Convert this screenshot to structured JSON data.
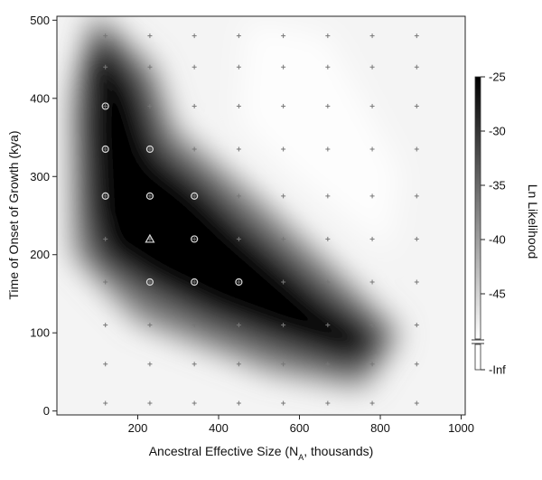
{
  "chart_data": {
    "type": "heatmap",
    "xlabel": "Ancestral Effective Size (N",
    "xlabel_sub": "A",
    "xlabel_tail": ", thousands)",
    "ylabel": "Time of Onset of Growth (kya)",
    "colorbar_label": "Ln Likelihood",
    "xlim": [
      0,
      1010
    ],
    "ylim": [
      -5,
      505
    ],
    "x_ticks": [
      200,
      400,
      600,
      800,
      1000
    ],
    "y_ticks": [
      0,
      100,
      200,
      300,
      400,
      500
    ],
    "colorbar_range": [
      -47,
      -25
    ],
    "colorbar_ticks": [
      {
        "value": -25,
        "label": "-25"
      },
      {
        "value": -30,
        "label": "-30"
      },
      {
        "value": -35,
        "label": "-35"
      },
      {
        "value": -40,
        "label": "-40"
      },
      {
        "value": -45,
        "label": "-45"
      },
      {
        "value": -47,
        "label": "-Inf"
      }
    ],
    "grid_points": {
      "x": [
        120,
        230,
        340,
        450,
        560,
        670,
        780,
        890
      ],
      "y": [
        10,
        60,
        110,
        165,
        220,
        275,
        335,
        390,
        440,
        480
      ]
    },
    "circle_markers": [
      {
        "x": 120,
        "y": 390
      },
      {
        "x": 120,
        "y": 335
      },
      {
        "x": 230,
        "y": 335
      },
      {
        "x": 120,
        "y": 275
      },
      {
        "x": 230,
        "y": 275
      },
      {
        "x": 340,
        "y": 275
      },
      {
        "x": 340,
        "y": 220
      },
      {
        "x": 230,
        "y": 165
      },
      {
        "x": 340,
        "y": 165
      },
      {
        "x": 450,
        "y": 165
      }
    ],
    "triangle_marker": {
      "x": 230,
      "y": 220
    },
    "likelihood_ridge": [
      {
        "x": 170,
        "y": 400,
        "ln": -25
      },
      {
        "x": 160,
        "y": 330,
        "ln": -25
      },
      {
        "x": 240,
        "y": 290,
        "ln": -25
      },
      {
        "x": 330,
        "y": 240,
        "ln": -25
      },
      {
        "x": 430,
        "y": 200,
        "ln": -25
      },
      {
        "x": 540,
        "y": 160,
        "ln": -25
      },
      {
        "x": 650,
        "y": 125,
        "ln": -25
      },
      {
        "x": 740,
        "y": 100,
        "ln": -26
      },
      {
        "x": 140,
        "y": 450,
        "ln": -33
      },
      {
        "x": 110,
        "y": 260,
        "ln": -28
      }
    ]
  }
}
